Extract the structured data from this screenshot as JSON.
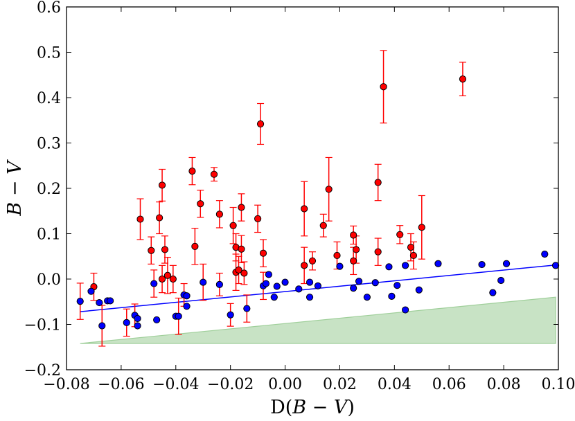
{
  "chart_data": {
    "type": "scatter",
    "title": "",
    "xlabel_prefix": "D(",
    "xlabel_math": "B − V",
    "xlabel_suffix": ")",
    "ylabel": "B − V",
    "xlim": [
      -0.08,
      0.1
    ],
    "ylim": [
      -0.2,
      0.6
    ],
    "x_ticks": [
      -0.08,
      -0.06,
      -0.04,
      -0.02,
      0.0,
      0.02,
      0.04,
      0.06,
      0.08,
      0.1
    ],
    "x_tick_labels": [
      "−0.08",
      "−0.06",
      "−0.04",
      "−0.02",
      "0.00",
      "0.02",
      "0.04",
      "0.06",
      "0.08",
      "0.10"
    ],
    "y_ticks": [
      -0.2,
      -0.1,
      0.0,
      0.1,
      0.2,
      0.3,
      0.4,
      0.5,
      0.6
    ],
    "y_tick_labels": [
      "−0.2",
      "−0.1",
      "0.0",
      "0.1",
      "0.2",
      "0.3",
      "0.4",
      "0.5",
      "0.6"
    ],
    "grid": false,
    "colors": {
      "red": "#ff0000",
      "blue": "#0000ff",
      "errorbar": "#ff0000",
      "fit_line": "#0000ff",
      "band_fill": "#c8e3c5",
      "band_edge": "#9fcf9a"
    },
    "fit_line": {
      "x": [
        -0.075,
        0.099
      ],
      "y": [
        -0.072,
        0.031
      ]
    },
    "lower_band": {
      "x": [
        -0.075,
        0.099,
        0.099,
        -0.075
      ],
      "y": [
        -0.142,
        -0.04,
        -0.142,
        -0.142
      ]
    },
    "series": [
      {
        "name": "red",
        "points": [
          {
            "x": -0.07,
            "y": -0.017,
            "err": 0.03
          },
          {
            "x": -0.053,
            "y": 0.132,
            "err": 0.045
          },
          {
            "x": -0.049,
            "y": 0.063,
            "err": 0.03
          },
          {
            "x": -0.046,
            "y": 0.135,
            "err": 0.035
          },
          {
            "x": -0.045,
            "y": 0.207,
            "err": 0.035
          },
          {
            "x": -0.045,
            "y": 0.0,
            "err": 0.03
          },
          {
            "x": -0.044,
            "y": 0.065,
            "err": 0.03
          },
          {
            "x": -0.043,
            "y": 0.008,
            "err": 0.04
          },
          {
            "x": -0.041,
            "y": 0.0,
            "err": 0.03
          },
          {
            "x": -0.034,
            "y": 0.238,
            "err": 0.03
          },
          {
            "x": -0.033,
            "y": 0.072,
            "err": 0.04
          },
          {
            "x": -0.031,
            "y": 0.166,
            "err": 0.03
          },
          {
            "x": -0.026,
            "y": 0.231,
            "err": 0.015
          },
          {
            "x": -0.024,
            "y": 0.143,
            "err": 0.03
          },
          {
            "x": -0.019,
            "y": 0.118,
            "err": 0.04
          },
          {
            "x": -0.018,
            "y": 0.07,
            "err": 0.03
          },
          {
            "x": -0.018,
            "y": 0.015,
            "err": 0.04
          },
          {
            "x": -0.017,
            "y": 0.02,
            "err": 0.03
          },
          {
            "x": -0.016,
            "y": 0.158,
            "err": 0.03
          },
          {
            "x": -0.016,
            "y": 0.066,
            "err": 0.03
          },
          {
            "x": -0.015,
            "y": 0.013,
            "err": 0.025
          },
          {
            "x": -0.01,
            "y": 0.133,
            "err": 0.03
          },
          {
            "x": -0.009,
            "y": 0.342,
            "err": 0.045
          },
          {
            "x": -0.008,
            "y": 0.057,
            "err": 0.03
          },
          {
            "x": 0.007,
            "y": 0.155,
            "err": 0.06
          },
          {
            "x": 0.007,
            "y": 0.03,
            "err": 0.04
          },
          {
            "x": 0.01,
            "y": 0.04,
            "err": 0.02
          },
          {
            "x": 0.014,
            "y": 0.118,
            "err": 0.025
          },
          {
            "x": 0.016,
            "y": 0.198,
            "err": 0.07
          },
          {
            "x": 0.019,
            "y": 0.052,
            "err": 0.03
          },
          {
            "x": 0.025,
            "y": 0.097,
            "err": 0.02
          },
          {
            "x": 0.025,
            "y": 0.04,
            "err": 0.03
          },
          {
            "x": 0.026,
            "y": 0.065,
            "err": 0.03
          },
          {
            "x": 0.034,
            "y": 0.213,
            "err": 0.04
          },
          {
            "x": 0.034,
            "y": 0.06,
            "err": 0.03
          },
          {
            "x": 0.036,
            "y": 0.424,
            "err": 0.08
          },
          {
            "x": 0.042,
            "y": 0.098,
            "err": 0.02
          },
          {
            "x": 0.046,
            "y": 0.07,
            "err": 0.03
          },
          {
            "x": 0.047,
            "y": 0.052,
            "err": 0.03
          },
          {
            "x": 0.05,
            "y": 0.114,
            "err": 0.07
          },
          {
            "x": 0.065,
            "y": 0.441,
            "err": 0.037
          }
        ]
      },
      {
        "name": "blue",
        "points": [
          {
            "x": -0.075,
            "y": -0.049,
            "err": 0.04
          },
          {
            "x": -0.071,
            "y": -0.027,
            "err": 0.0
          },
          {
            "x": -0.068,
            "y": -0.052,
            "err": 0.0
          },
          {
            "x": -0.067,
            "y": -0.103,
            "err": 0.045
          },
          {
            "x": -0.065,
            "y": -0.048,
            "err": 0.0
          },
          {
            "x": -0.064,
            "y": -0.048,
            "err": 0.0
          },
          {
            "x": -0.058,
            "y": -0.096,
            "err": 0.03
          },
          {
            "x": -0.055,
            "y": -0.08,
            "err": 0.025
          },
          {
            "x": -0.054,
            "y": -0.103,
            "err": 0.0
          },
          {
            "x": -0.054,
            "y": -0.087,
            "err": 0.0
          },
          {
            "x": -0.048,
            "y": -0.01,
            "err": 0.03
          },
          {
            "x": -0.047,
            "y": -0.09,
            "err": 0.0
          },
          {
            "x": -0.04,
            "y": -0.082,
            "err": 0.0
          },
          {
            "x": -0.039,
            "y": -0.082,
            "err": 0.04
          },
          {
            "x": -0.037,
            "y": -0.035,
            "err": 0.025
          },
          {
            "x": -0.036,
            "y": -0.037,
            "err": 0.0
          },
          {
            "x": -0.036,
            "y": -0.06,
            "err": 0.0
          },
          {
            "x": -0.03,
            "y": -0.007,
            "err": 0.04
          },
          {
            "x": -0.024,
            "y": -0.012,
            "err": 0.025
          },
          {
            "x": -0.02,
            "y": -0.079,
            "err": 0.025
          },
          {
            "x": -0.014,
            "y": -0.065,
            "err": 0.03
          },
          {
            "x": -0.008,
            "y": -0.015,
            "err": 0.03
          },
          {
            "x": -0.007,
            "y": -0.01,
            "err": 0.0
          },
          {
            "x": -0.006,
            "y": 0.01,
            "err": 0.0
          },
          {
            "x": -0.004,
            "y": -0.04,
            "err": 0.0
          },
          {
            "x": -0.003,
            "y": -0.016,
            "err": 0.0
          },
          {
            "x": 0.0,
            "y": -0.007,
            "err": 0.0
          },
          {
            "x": 0.005,
            "y": -0.022,
            "err": 0.0
          },
          {
            "x": 0.009,
            "y": -0.007,
            "err": 0.0
          },
          {
            "x": 0.009,
            "y": -0.04,
            "err": 0.0
          },
          {
            "x": 0.012,
            "y": -0.015,
            "err": 0.0
          },
          {
            "x": 0.02,
            "y": 0.028,
            "err": 0.0
          },
          {
            "x": 0.025,
            "y": -0.02,
            "err": 0.0
          },
          {
            "x": 0.027,
            "y": -0.005,
            "err": 0.0
          },
          {
            "x": 0.03,
            "y": -0.04,
            "err": 0.0
          },
          {
            "x": 0.033,
            "y": -0.008,
            "err": 0.0
          },
          {
            "x": 0.038,
            "y": 0.027,
            "err": 0.0
          },
          {
            "x": 0.039,
            "y": -0.038,
            "err": 0.0
          },
          {
            "x": 0.041,
            "y": -0.014,
            "err": 0.0
          },
          {
            "x": 0.044,
            "y": 0.03,
            "err": 0.0
          },
          {
            "x": 0.044,
            "y": -0.068,
            "err": 0.0
          },
          {
            "x": 0.049,
            "y": -0.024,
            "err": 0.0
          },
          {
            "x": 0.056,
            "y": 0.034,
            "err": 0.0
          },
          {
            "x": 0.072,
            "y": 0.032,
            "err": 0.0
          },
          {
            "x": 0.076,
            "y": -0.03,
            "err": 0.0
          },
          {
            "x": 0.079,
            "y": -0.003,
            "err": 0.0
          },
          {
            "x": 0.081,
            "y": 0.034,
            "err": 0.0
          },
          {
            "x": 0.095,
            "y": 0.055,
            "err": 0.0
          },
          {
            "x": 0.099,
            "y": 0.03,
            "err": 0.0
          }
        ]
      }
    ]
  }
}
